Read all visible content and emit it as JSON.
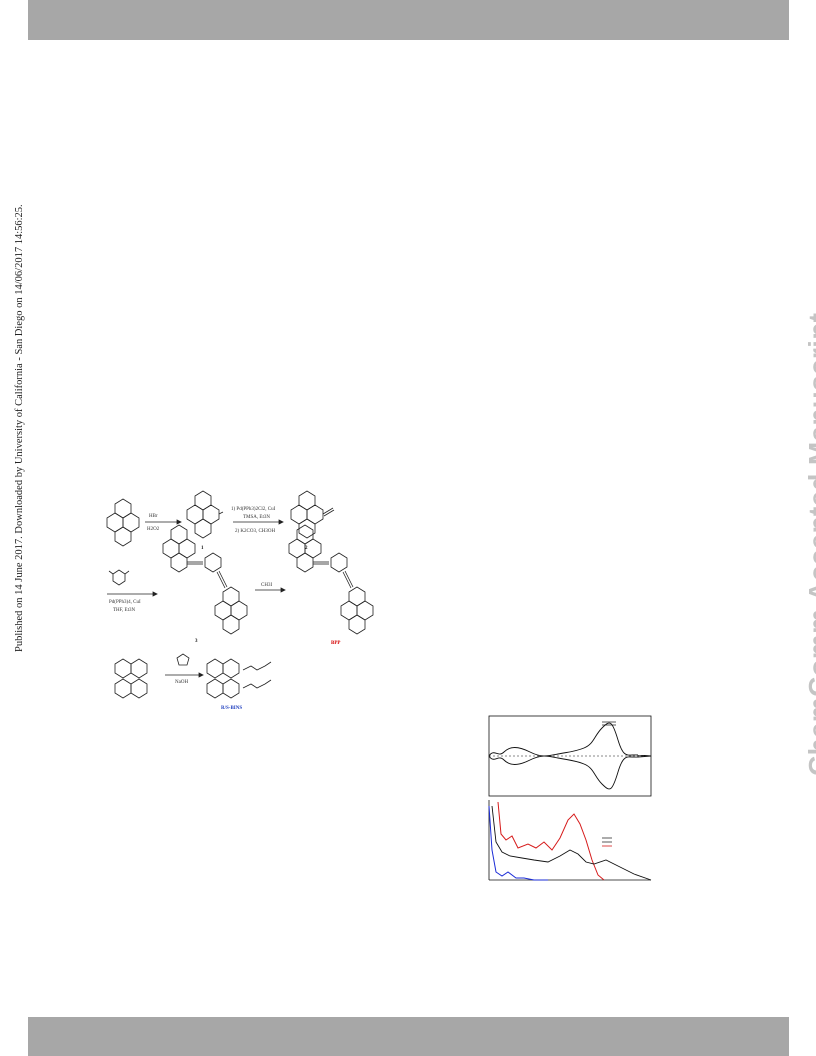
{
  "sidebar_note": "Published on 14 June 2017. Downloaded by University of California - San Diego on 14/06/2017 14:56:25.",
  "watermark": "ChemComm Accepted Manuscript",
  "scheme": {
    "reagent_step1_top": "HBr",
    "reagent_step1_bottom": "H2O2",
    "reagent_step2_line1": "1) Pd(PPh3)2Cl2, CuI",
    "reagent_step2_line2": "TMSA, Et3N",
    "reagent_step2_line3": "2) K2CO3, CH3OH",
    "reagent_step3_line1": "Pd(PPh3)4, CuI",
    "reagent_step3_line2": "THF, Et3N",
    "reagent_step4": "CH3I",
    "reagent_step5": "NaOH",
    "compound_1": "1",
    "compound_2": "2",
    "compound_3": "3",
    "compound_bpp": "BPP",
    "compound_binaphthol": "R/S-BINS",
    "colors": {
      "bpp": "#d40000",
      "bins": "#1f3fbf"
    }
  },
  "spectra": {
    "colors": {
      "black": "#111111",
      "red": "#d61a1a",
      "blue": "#1a2bd6"
    }
  }
}
